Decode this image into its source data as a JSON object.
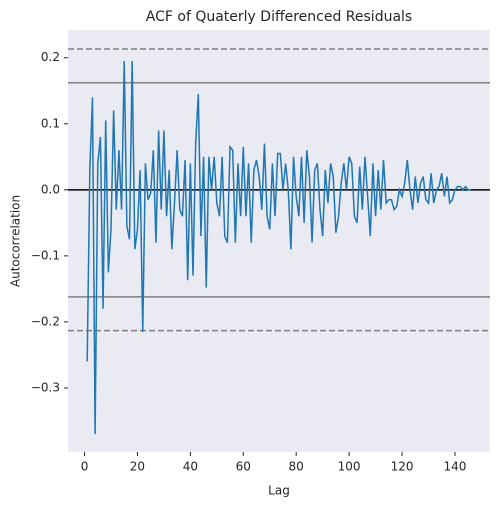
{
  "chart_data": {
    "type": "line",
    "title": "ACF of Quaterly Differenced Residuals",
    "x_label": "Lag",
    "y_label": "Autocorrelation",
    "x": [
      1,
      2,
      3,
      4,
      5,
      6,
      7,
      8,
      9,
      10,
      11,
      12,
      13,
      14,
      15,
      16,
      17,
      18,
      19,
      20,
      21,
      22,
      23,
      24,
      25,
      26,
      27,
      28,
      29,
      30,
      31,
      32,
      33,
      34,
      35,
      36,
      37,
      38,
      39,
      40,
      41,
      42,
      43,
      44,
      45,
      46,
      47,
      48,
      49,
      50,
      51,
      52,
      53,
      54,
      55,
      56,
      57,
      58,
      59,
      60,
      61,
      62,
      63,
      64,
      65,
      66,
      67,
      68,
      69,
      70,
      71,
      72,
      73,
      74,
      75,
      76,
      77,
      78,
      79,
      80,
      81,
      82,
      83,
      84,
      85,
      86,
      87,
      88,
      89,
      90,
      91,
      92,
      93,
      94,
      95,
      96,
      97,
      98,
      99,
      100,
      101,
      102,
      103,
      104,
      105,
      106,
      107,
      108,
      109,
      110,
      111,
      112,
      113,
      114,
      115,
      116,
      117,
      118,
      119,
      120,
      121,
      122,
      123,
      124,
      125,
      126,
      127,
      128,
      129,
      130,
      131,
      132,
      133,
      134,
      135,
      136,
      137,
      138,
      139,
      140,
      141,
      142,
      143,
      144,
      145,
      146
    ],
    "series": [
      {
        "color": "#1f77b4",
        "values": [
          -0.26,
          0.03,
          0.14,
          -0.37,
          0.04,
          0.08,
          -0.18,
          0.105,
          -0.125,
          -0.06,
          0.12,
          -0.03,
          0.06,
          -0.03,
          0.195,
          -0.055,
          -0.075,
          0.195,
          -0.09,
          -0.06,
          0.03,
          -0.215,
          0.04,
          -0.015,
          -0.005,
          0.06,
          -0.08,
          0.09,
          -0.03,
          0.09,
          -0.04,
          0.03,
          -0.09,
          -0.02,
          0.06,
          -0.03,
          -0.04,
          0.045,
          -0.137,
          0.04,
          -0.13,
          0.07,
          0.145,
          -0.07,
          0.05,
          -0.148,
          0.05,
          0.0,
          0.05,
          -0.02,
          -0.04,
          0.05,
          -0.07,
          -0.08,
          0.065,
          0.06,
          -0.08,
          0.04,
          -0.04,
          0.065,
          -0.04,
          0.04,
          -0.08,
          0.03,
          0.045,
          0.02,
          -0.03,
          0.07,
          -0.04,
          -0.06,
          0.04,
          -0.04,
          0.055,
          0.055,
          0.0,
          0.04,
          0.0,
          -0.09,
          0.05,
          -0.01,
          -0.04,
          0.05,
          -0.05,
          0.06,
          0.02,
          -0.08,
          0.03,
          0.04,
          -0.03,
          -0.07,
          0.03,
          -0.02,
          0.04,
          0.02,
          -0.065,
          -0.04,
          0.01,
          0.04,
          0.0,
          0.05,
          0.04,
          -0.04,
          -0.05,
          0.035,
          -0.03,
          0.05,
          -0.01,
          -0.07,
          0.04,
          -0.04,
          0.03,
          -0.03,
          0.045,
          -0.02,
          -0.015,
          -0.015,
          -0.03,
          -0.025,
          0.0,
          -0.01,
          0.01,
          0.045,
          0.0,
          -0.03,
          0.02,
          -0.02,
          0.01,
          0.02,
          -0.015,
          -0.02,
          0.025,
          -0.02,
          0.0,
          0.005,
          0.025,
          -0.01,
          0.02,
          -0.02,
          -0.015,
          0.0,
          0.005,
          0.005,
          0.0,
          0.005,
          0.0,
          0.0
        ]
      }
    ],
    "hlines": [
      {
        "y": 0.2132,
        "color": "#808080",
        "dashed": true
      },
      {
        "y": 0.1622,
        "color": "#808080",
        "dashed": false
      },
      {
        "y": 0,
        "color": "#000000",
        "dashed": false
      },
      {
        "y": -0.1622,
        "color": "#808080",
        "dashed": false
      },
      {
        "y": -0.2132,
        "color": "#808080",
        "dashed": true
      }
    ],
    "xlim": [
      -6.25,
      153.25
    ],
    "ylim": [
      -0.397,
      0.242
    ],
    "xticks": [
      0,
      20,
      40,
      60,
      80,
      100,
      120,
      140
    ],
    "yticks": [
      {
        "value": -0.3,
        "label": "−0.3"
      },
      {
        "value": -0.2,
        "label": "−0.2"
      },
      {
        "value": -0.1,
        "label": "−0.1"
      },
      {
        "value": 0,
        "label": "0.0"
      },
      0.1,
      0.2
    ],
    "grid": false,
    "background": "#eaeaf2"
  }
}
